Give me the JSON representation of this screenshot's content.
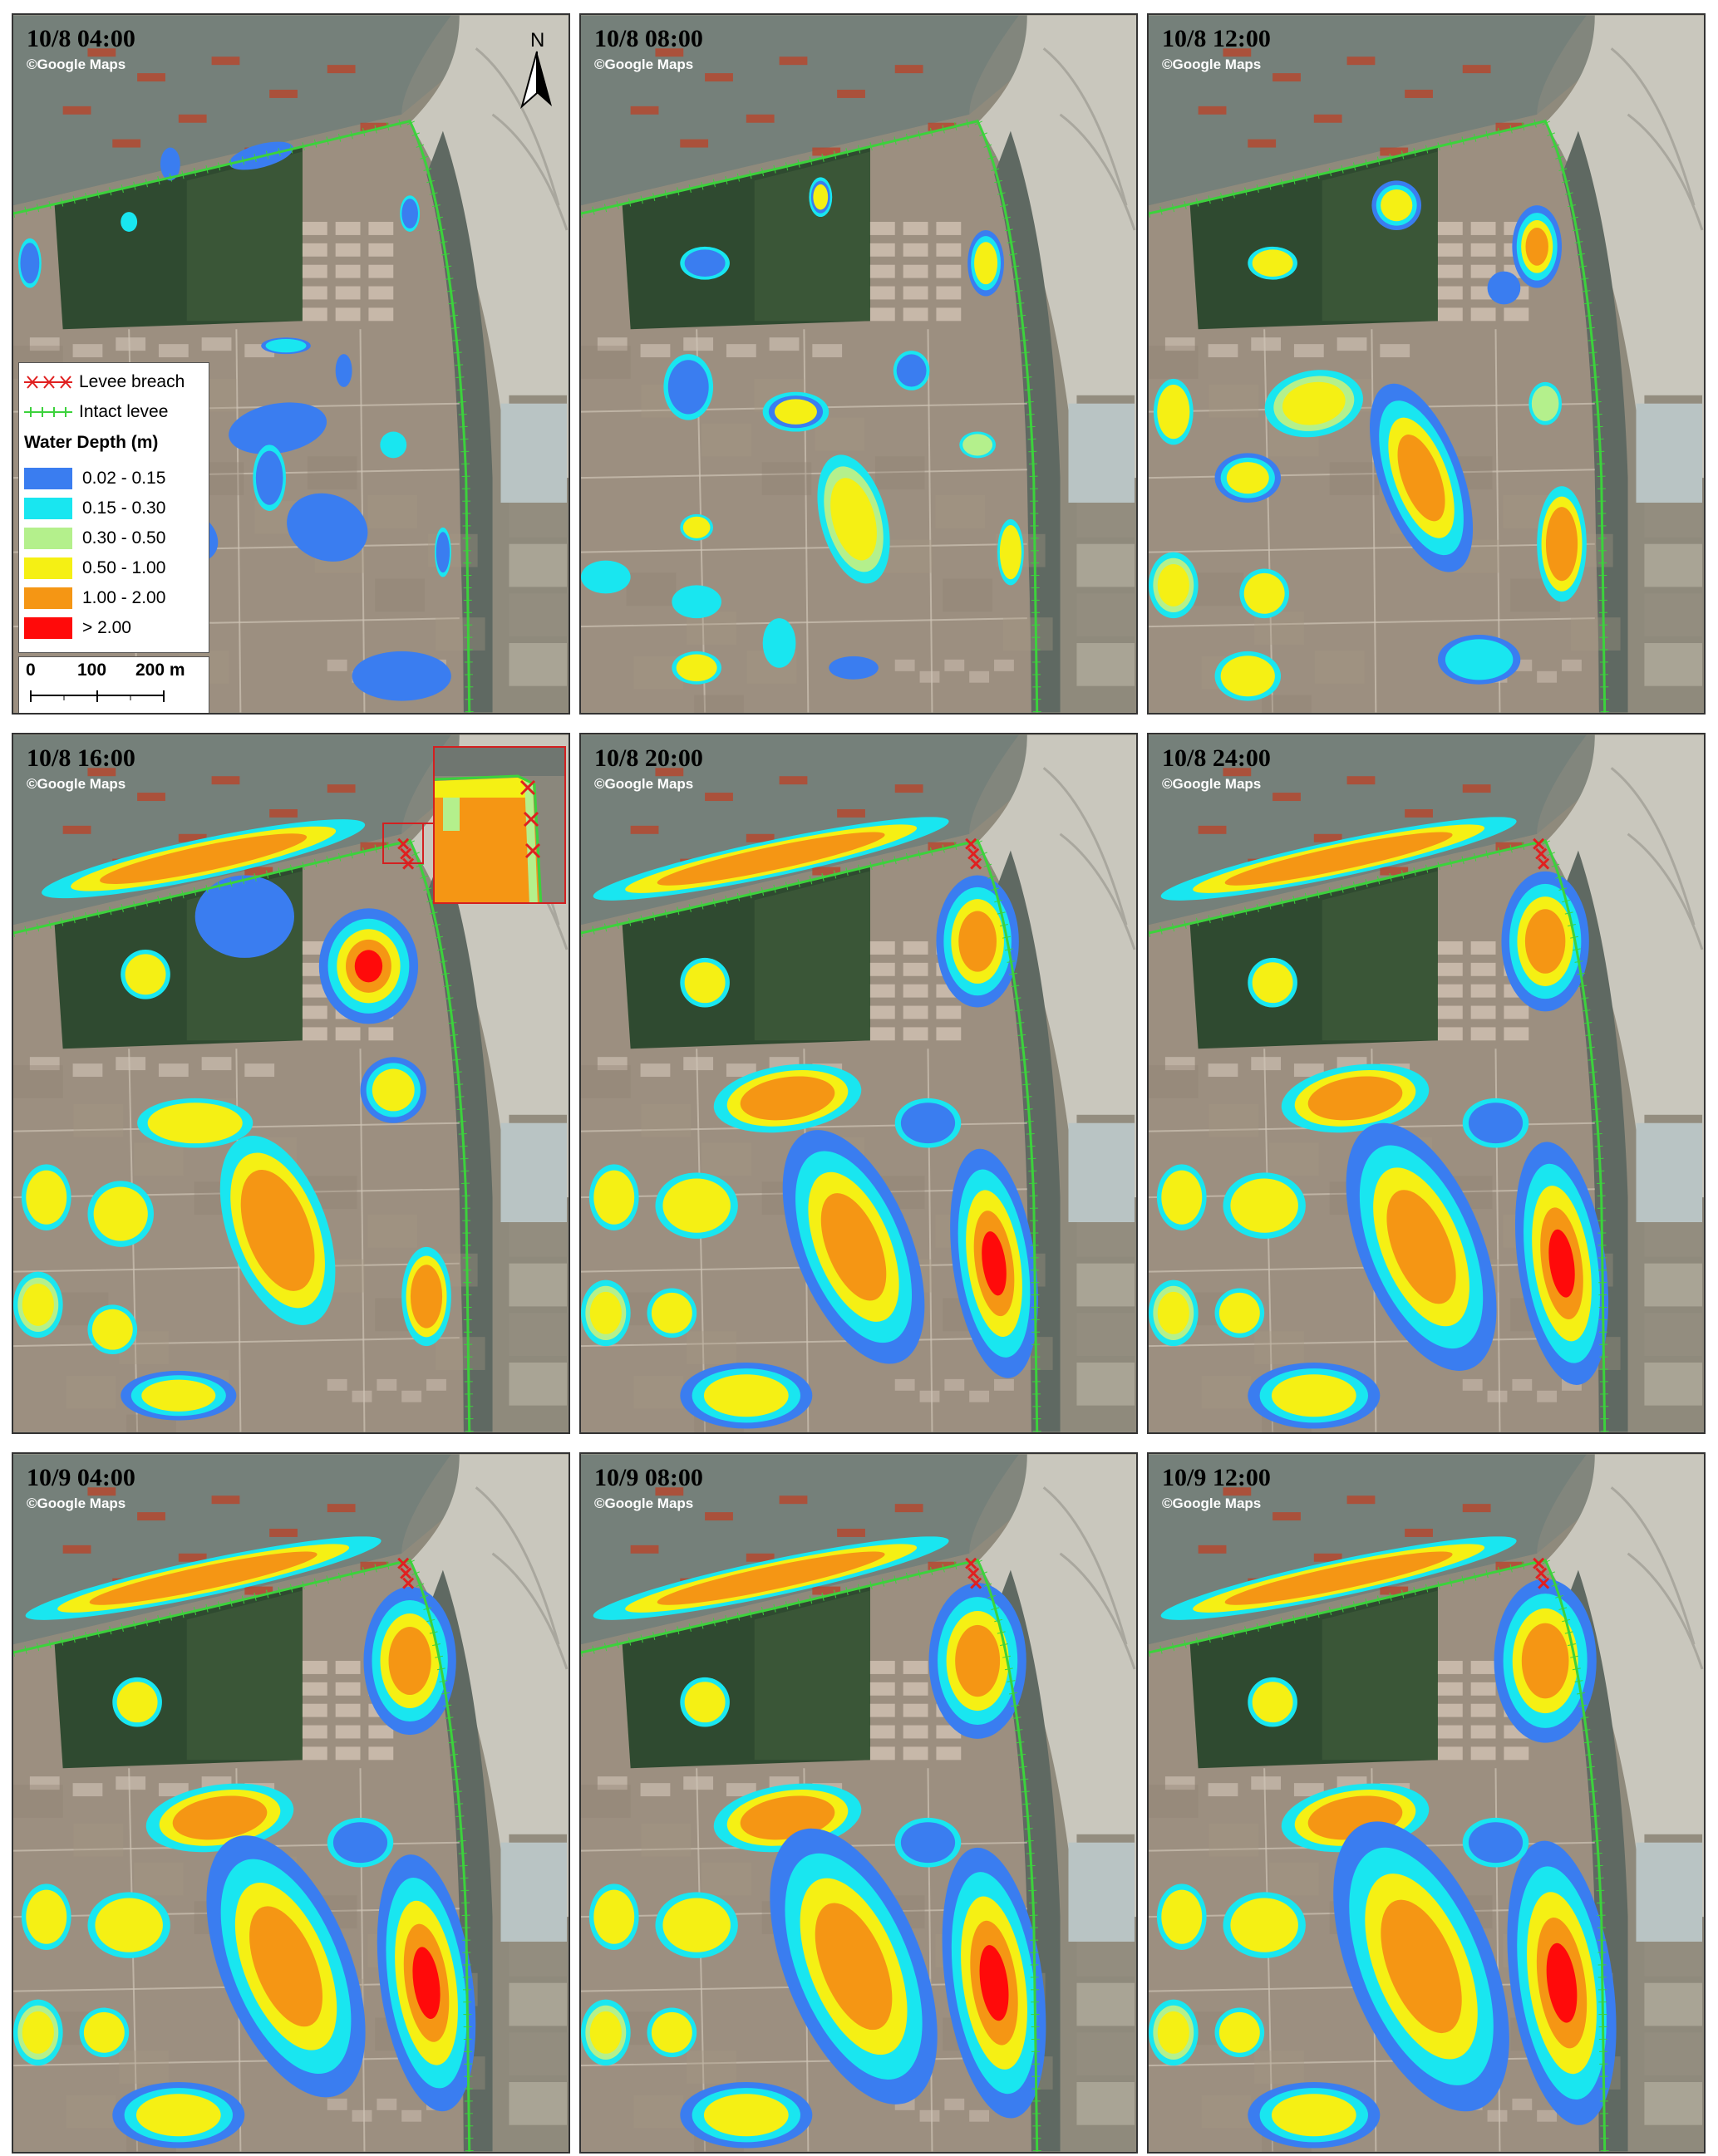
{
  "credit": "©Google Maps",
  "panels": [
    {
      "title": "10/8 04:00"
    },
    {
      "title": "10/8 08:00"
    },
    {
      "title": "10/8 12:00"
    },
    {
      "title": "10/8 16:00"
    },
    {
      "title": "10/8 20:00"
    },
    {
      "title": "10/8 24:00"
    },
    {
      "title": "10/9 04:00"
    },
    {
      "title": "10/9 08:00"
    },
    {
      "title": "10/9 12:00"
    }
  ],
  "north_label": "N",
  "legend": {
    "breach": "Levee breach",
    "intact": "Intact levee",
    "depth_title": "Water Depth (m)",
    "classes": [
      {
        "label": "0.02 - 0.15",
        "color": "#3a7df0"
      },
      {
        "label": "0.15 - 0.30",
        "color": "#19e6f0"
      },
      {
        "label": "0.30 - 0.50",
        "color": "#b4f08c"
      },
      {
        "label": "0.50 - 1.00",
        "color": "#f5f014"
      },
      {
        "label": "1.00 - 2.00",
        "color": "#f59614"
      },
      {
        "label": "> 2.00",
        "color": "#ff0a0a"
      }
    ],
    "breach_color": "#e02020",
    "intact_color": "#3cd23c"
  },
  "scale": {
    "t0": "0",
    "t1": "100",
    "t2": "200 m"
  }
}
